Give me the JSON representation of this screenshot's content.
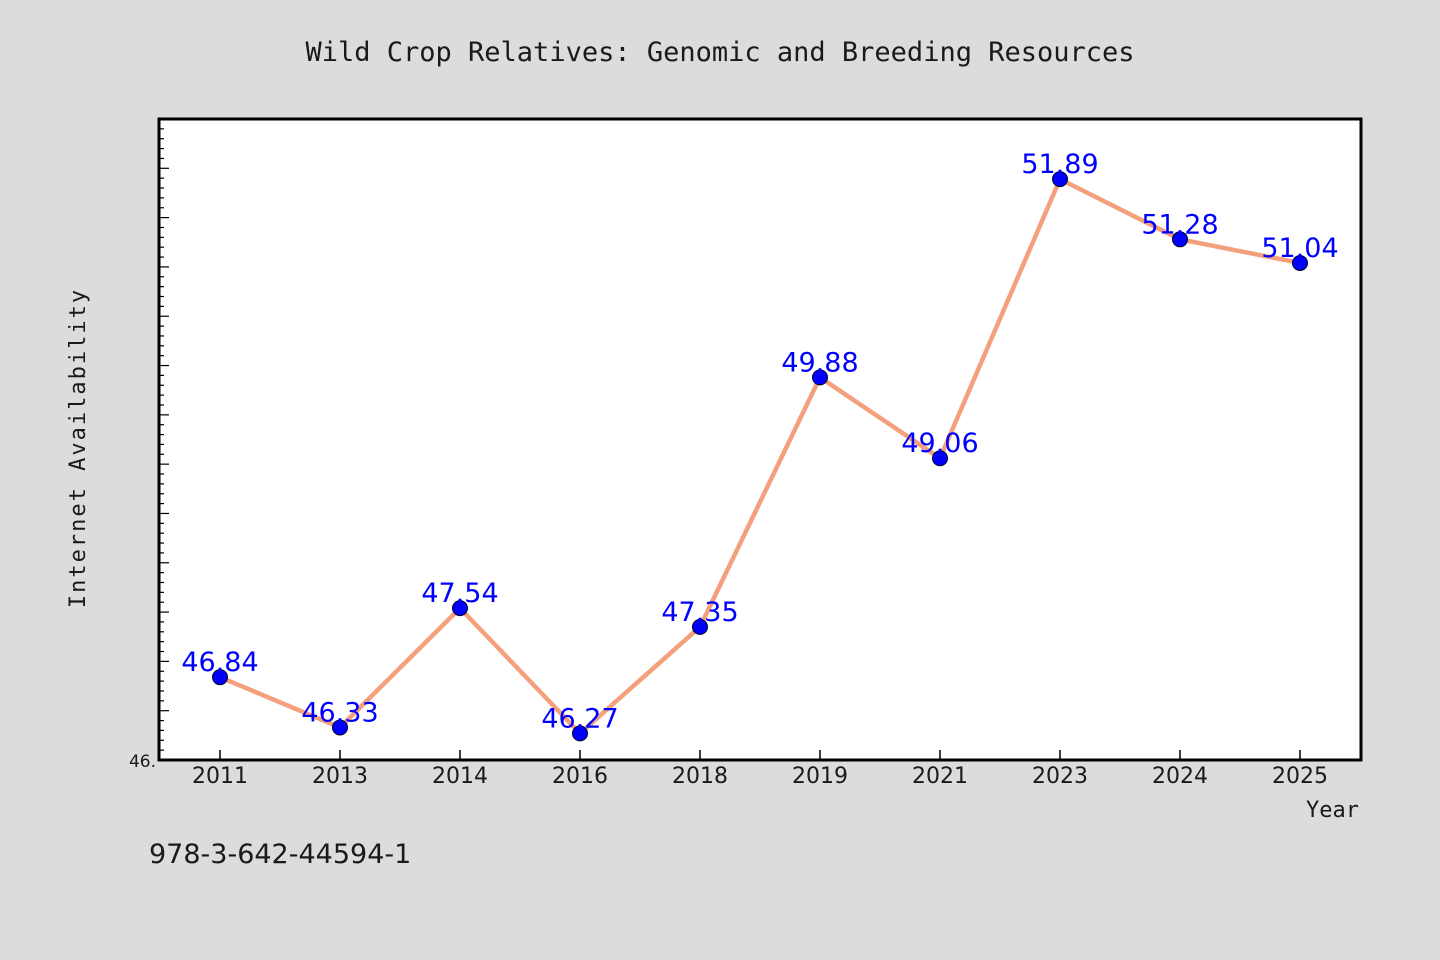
{
  "chart_data": {
    "type": "line",
    "title": "Wild Crop Relatives: Genomic and Breeding Resources",
    "xlabel": "Year",
    "ylabel": "Internet Availability",
    "categories": [
      "2011",
      "2013",
      "2014",
      "2016",
      "2018",
      "2019",
      "2021",
      "2023",
      "2024",
      "2025"
    ],
    "values": [
      46.84,
      46.33,
      47.54,
      46.27,
      47.35,
      49.88,
      49.06,
      51.89,
      51.28,
      51.04
    ],
    "data_labels": [
      "46.84",
      "46.33",
      "47.54",
      "46.27",
      "47.35",
      "49.88",
      "49.06",
      "51.89",
      "51.28",
      "51.04"
    ],
    "y_tick_label": "46.",
    "ylim": [
      46.0,
      52.5
    ],
    "y_minor_tick_step": 0.1,
    "y_major_tick_step": 0.5,
    "grid": false,
    "legend": "none",
    "line_color": "#f4a07c",
    "marker_color": "#0000ff",
    "label_color": "#0000ff"
  },
  "footnote": "978-3-642-44594-1"
}
